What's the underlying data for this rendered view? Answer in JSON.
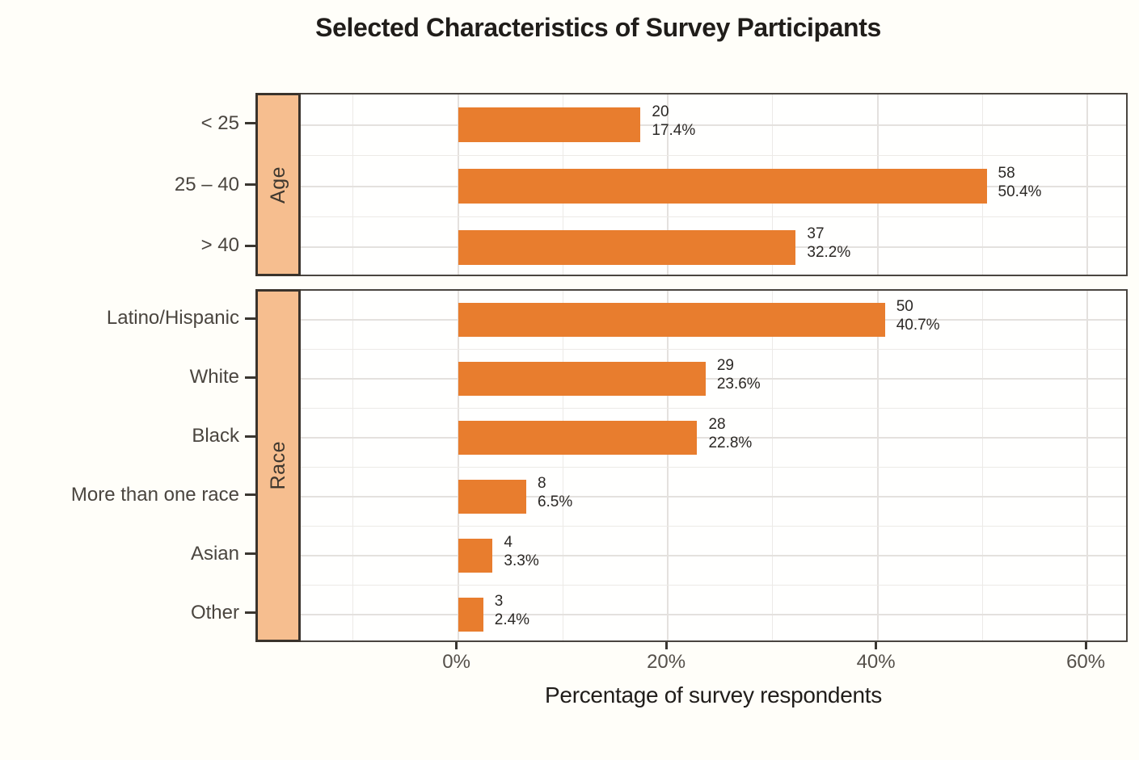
{
  "title": "Selected Characteristics of Survey Participants",
  "x_axis": {
    "label": "Percentage of survey respondents",
    "tick_labels": [
      "0%",
      "20%",
      "40%",
      "60%"
    ],
    "tick_values": [
      0,
      20,
      40,
      60
    ],
    "range_pct": [
      -15,
      64
    ],
    "minor_grid_step_pct": 10
  },
  "colors": {
    "bar": "#E87D2E",
    "strip_fill": "#F6BE8F",
    "strip_border": "#3A332C",
    "panel_border": "#4A4540",
    "grid_major": "#E4E1DE",
    "grid_minor": "#ECEAE7",
    "background": "#FFFEF9",
    "panel_background": "#FFFFFE",
    "title_text": "#201D1A",
    "category_text": "#4A453F",
    "bar_label_text": "#2B2825"
  },
  "chart_data": {
    "type": "bar",
    "orientation": "horizontal",
    "title": "Selected Characteristics of Survey Participants",
    "xlabel": "Percentage of survey respondents",
    "xlim": [
      -15,
      64
    ],
    "x_ticks_pct": [
      0,
      20,
      40,
      60
    ],
    "grid": true,
    "legend": false,
    "panels": [
      {
        "facet": "Age",
        "categories": [
          "< 25",
          "25 – 40",
          "> 40"
        ],
        "counts": [
          20,
          58,
          37
        ],
        "percents": [
          17.4,
          50.4,
          32.2
        ]
      },
      {
        "facet": "Race",
        "categories": [
          "Latino/Hispanic",
          "White",
          "Black",
          "More than one race",
          "Asian",
          "Other"
        ],
        "counts": [
          50,
          29,
          28,
          8,
          4,
          3
        ],
        "percents": [
          40.7,
          23.6,
          22.8,
          6.5,
          3.3,
          2.4
        ]
      }
    ]
  }
}
